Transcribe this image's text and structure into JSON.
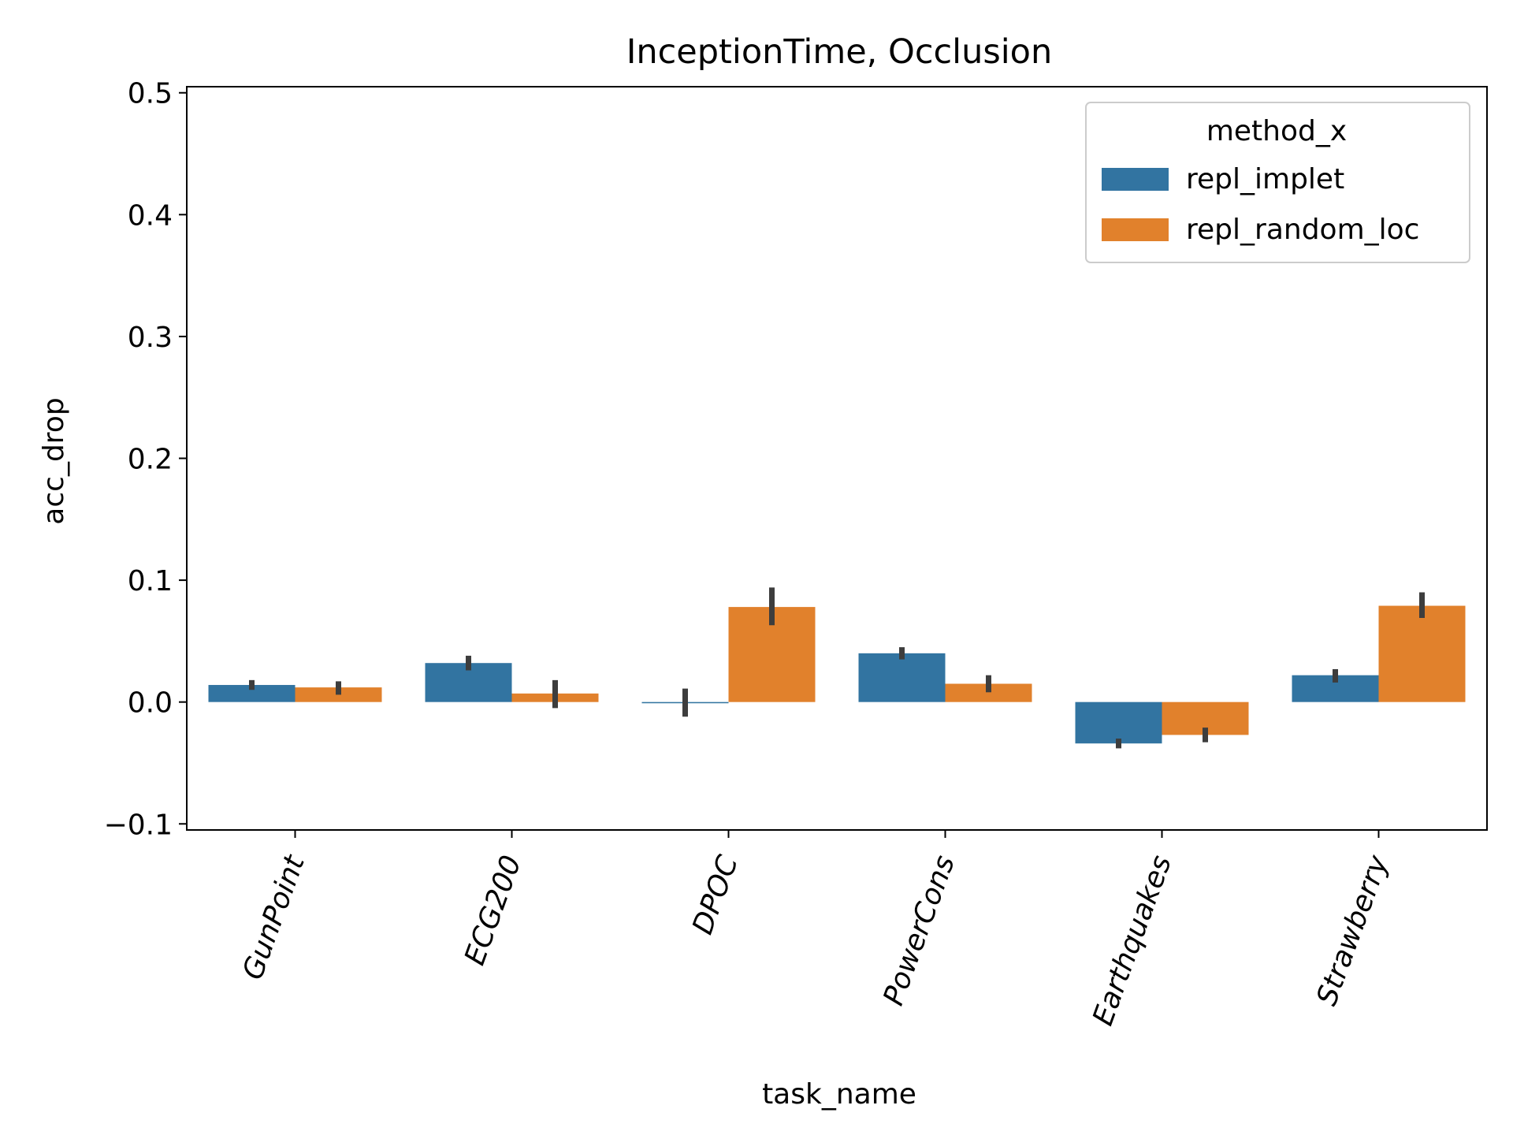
{
  "chart_data": {
    "type": "bar",
    "title": "InceptionTime, Occlusion",
    "xlabel": "task_name",
    "ylabel": "acc_drop",
    "categories": [
      "GunPoint",
      "ECG200",
      "DPOC",
      "PowerCons",
      "Earthquakes",
      "Strawberry"
    ],
    "ylim": [
      -0.105,
      0.505
    ],
    "yticks": [
      -0.1,
      0.0,
      0.1,
      0.2,
      0.3,
      0.4,
      0.5
    ],
    "ytick_labels": [
      "−0.1",
      "0.0",
      "0.1",
      "0.2",
      "0.3",
      "0.4",
      "0.5"
    ],
    "grid": false,
    "legend": {
      "title": "method_x",
      "placement": "top-right"
    },
    "series": [
      {
        "name": "repl_implet",
        "color": "#3274a1",
        "values": [
          0.014,
          0.032,
          -0.001,
          0.04,
          -0.034,
          0.022
        ],
        "error_low": [
          0.01,
          0.026,
          -0.012,
          0.035,
          -0.038,
          0.016
        ],
        "error_high": [
          0.018,
          0.038,
          0.011,
          0.045,
          -0.03,
          0.027
        ]
      },
      {
        "name": "repl_random_loc",
        "color": "#e1812c",
        "values": [
          0.012,
          0.007,
          0.078,
          0.015,
          -0.027,
          0.079
        ],
        "error_low": [
          0.006,
          -0.005,
          0.063,
          0.008,
          -0.033,
          0.069
        ],
        "error_high": [
          0.017,
          0.018,
          0.094,
          0.022,
          -0.021,
          0.09
        ]
      }
    ],
    "errorbar_color": "#3d3d3d"
  }
}
